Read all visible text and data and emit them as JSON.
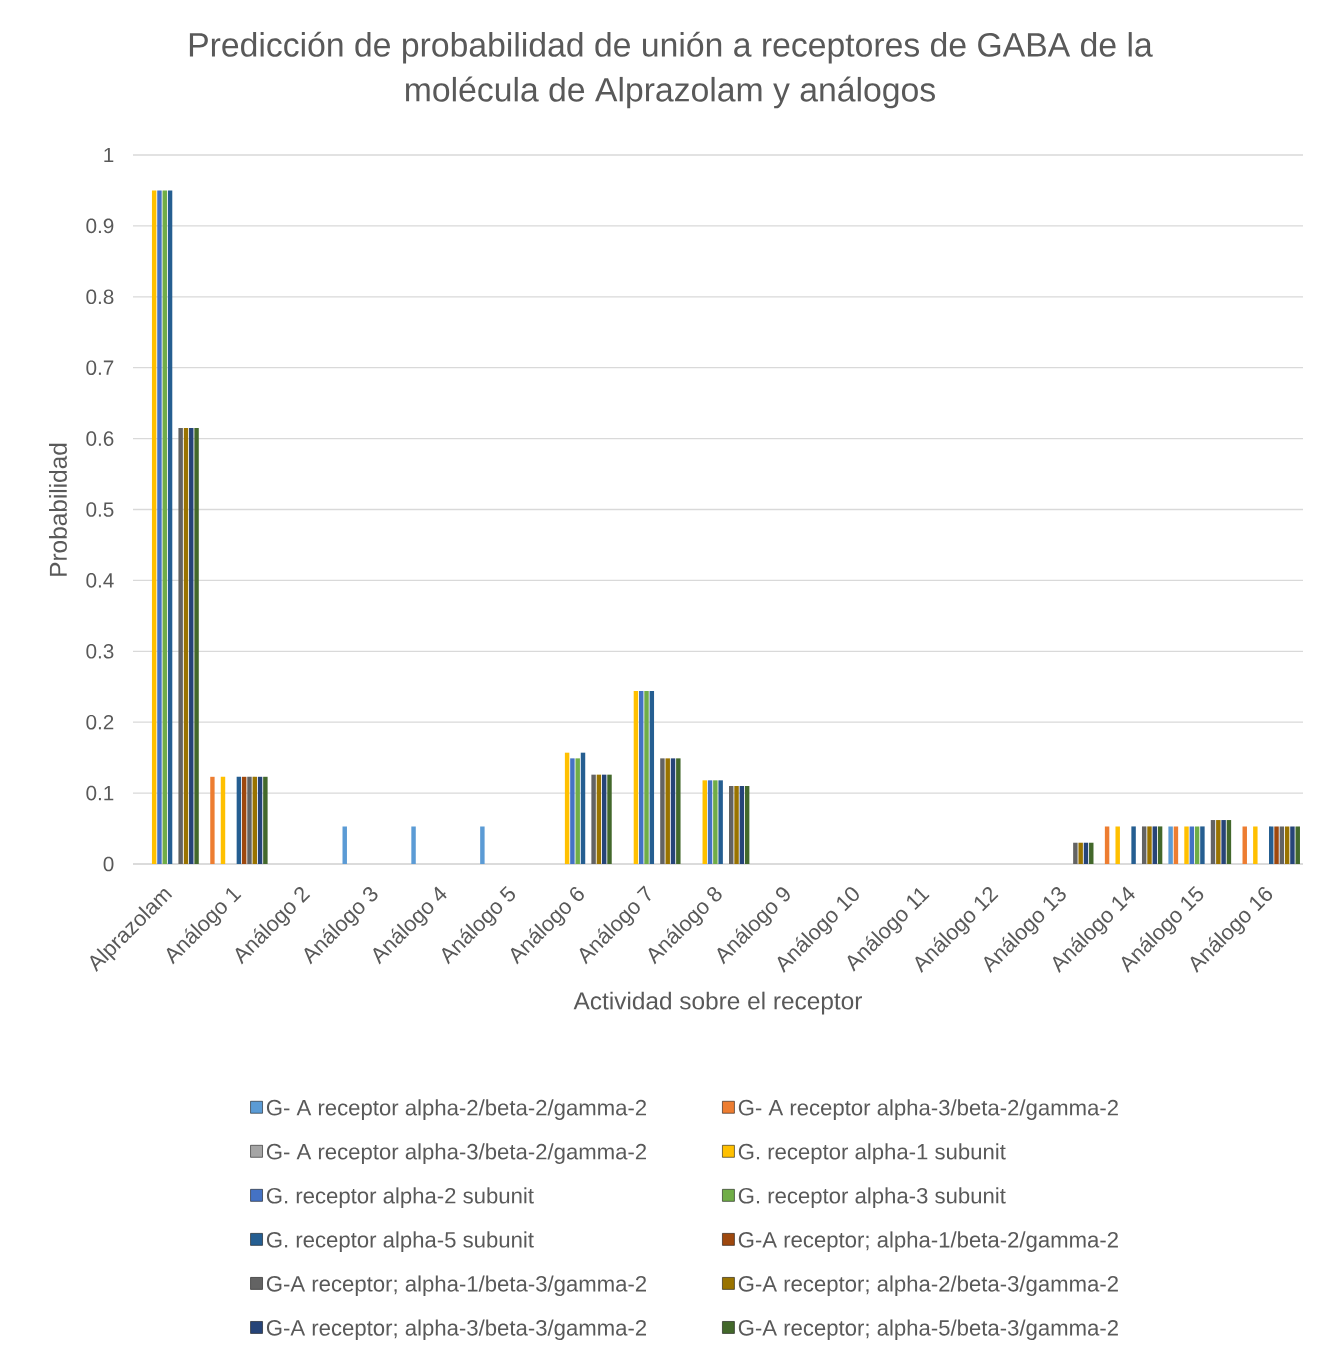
{
  "chart_data": {
    "type": "bar",
    "title": "Predicción de probabilidad de unión a receptores de GABA de la molécula de Alprazolam y análogos",
    "xlabel": "Actividad sobre el receptor",
    "ylabel": "Probabilidad",
    "categories": [
      "Alprazolam",
      "Análogo 1",
      "Análogo 2",
      "Análogo 3",
      "Análogo 4",
      "Análogo 5",
      "Análogo 6",
      "Análogo 7",
      "Análogo 8",
      "Análogo 9",
      "Análogo 10",
      "Análogo 11",
      "Análogo 12",
      "Análogo 13",
      "Análogo 14",
      "Análogo 15",
      "Análogo 16"
    ],
    "series": [
      {
        "name": "G- A receptor alpha-2/beta-2/gamma-2",
        "color": "#5b9bd5",
        "values": [
          null,
          null,
          null,
          0.053,
          0.053,
          0.053,
          null,
          null,
          null,
          null,
          null,
          null,
          null,
          null,
          null,
          0.053,
          null
        ]
      },
      {
        "name": "G- A receptor alpha-3/beta-2/gamma-2",
        "color": "#ed7d31",
        "values": [
          null,
          0.123,
          null,
          null,
          null,
          null,
          null,
          null,
          null,
          null,
          null,
          null,
          null,
          null,
          0.053,
          0.053,
          0.053
        ]
      },
      {
        "name": "G- A receptor alpha-3/beta-2/gamma-2",
        "color": "#a5a5a5",
        "values": [
          null,
          null,
          null,
          null,
          null,
          null,
          null,
          null,
          null,
          null,
          null,
          null,
          null,
          null,
          null,
          null,
          null
        ]
      },
      {
        "name": "G. receptor alpha-1 subunit",
        "color": "#ffc000",
        "values": [
          0.95,
          0.123,
          null,
          null,
          null,
          null,
          0.157,
          0.244,
          0.118,
          null,
          null,
          null,
          null,
          null,
          0.053,
          0.053,
          0.053
        ]
      },
      {
        "name": "G. receptor alpha-2 subunit",
        "color": "#4472c4",
        "values": [
          0.95,
          null,
          null,
          null,
          null,
          null,
          0.149,
          0.244,
          0.118,
          null,
          null,
          null,
          null,
          null,
          null,
          0.053,
          null
        ]
      },
      {
        "name": "G. receptor alpha-3 subunit",
        "color": "#70ad47",
        "values": [
          0.95,
          null,
          null,
          null,
          null,
          null,
          0.149,
          0.244,
          0.118,
          null,
          null,
          null,
          null,
          null,
          null,
          0.053,
          null
        ]
      },
      {
        "name": "G. receptor alpha-5 subunit",
        "color": "#255e91",
        "values": [
          0.95,
          0.123,
          null,
          null,
          null,
          null,
          0.157,
          0.244,
          0.118,
          null,
          null,
          null,
          null,
          null,
          0.053,
          0.053,
          0.053
        ]
      },
      {
        "name": "G-A receptor; alpha-1/beta-2/gamma-2",
        "color": "#9e480e",
        "values": [
          null,
          0.123,
          null,
          null,
          null,
          null,
          null,
          null,
          null,
          null,
          null,
          null,
          null,
          null,
          null,
          null,
          0.053
        ]
      },
      {
        "name": "G-A receptor; alpha-1/beta-3/gamma-2",
        "color": "#636363",
        "values": [
          0.615,
          0.123,
          null,
          null,
          null,
          null,
          0.126,
          0.149,
          0.11,
          null,
          null,
          null,
          null,
          0.03,
          0.053,
          0.062,
          0.053
        ]
      },
      {
        "name": "G-A receptor; alpha-2/beta-3/gamma-2",
        "color": "#997300",
        "values": [
          0.615,
          0.123,
          null,
          null,
          null,
          null,
          0.126,
          0.149,
          0.11,
          null,
          null,
          null,
          null,
          0.03,
          0.053,
          0.062,
          0.053
        ]
      },
      {
        "name": "G-A receptor; alpha-3/beta-3/gamma-2",
        "color": "#264478",
        "values": [
          0.615,
          0.123,
          null,
          null,
          null,
          null,
          0.126,
          0.149,
          0.11,
          null,
          null,
          null,
          null,
          0.03,
          0.053,
          0.062,
          0.053
        ]
      },
      {
        "name": "G-A receptor; alpha-5/beta-3/gamma-2",
        "color": "#43682b",
        "values": [
          0.615,
          0.123,
          null,
          null,
          null,
          null,
          0.126,
          0.149,
          0.11,
          null,
          null,
          null,
          null,
          0.03,
          0.053,
          0.062,
          0.053
        ]
      }
    ],
    "ylim": [
      0,
      1
    ],
    "yticks": [
      0,
      0.1,
      0.2,
      0.3,
      0.4,
      0.5,
      0.6,
      0.7,
      0.8,
      0.9,
      1
    ],
    "grid": "y",
    "legend": "bottom"
  }
}
